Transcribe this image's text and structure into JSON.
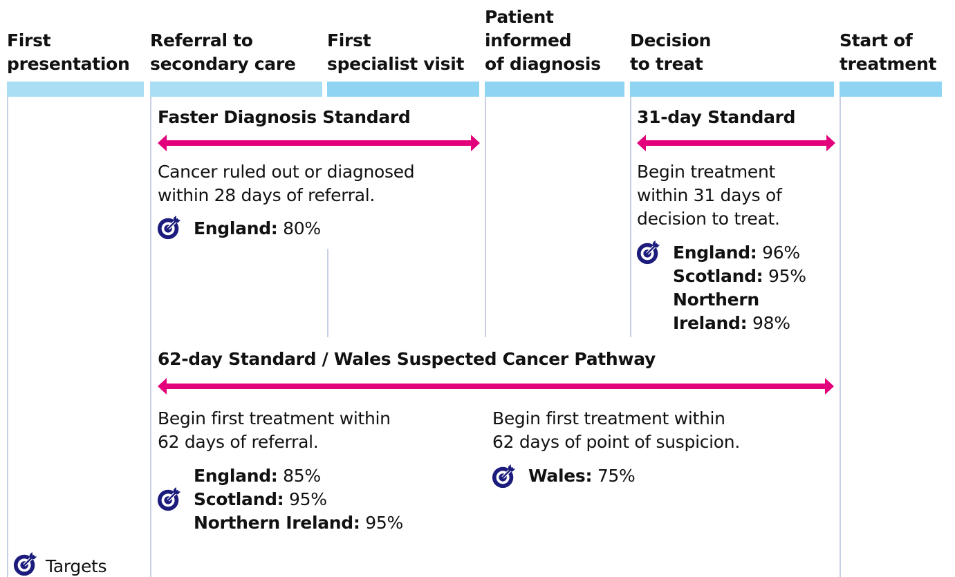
{
  "stages": [
    "First\npresentation",
    "Referral to\nsecondary care",
    "First\nspecialist visit",
    "Patient\ninformed\nof diagnosis",
    "Decision\nto treat",
    "Start of\ntreatment"
  ],
  "standards": [
    {
      "title": "Faster Diagnosis Standard",
      "notes": [
        {
          "text": "Cancer ruled out or diagnosed\nwithin 28 days of referral.",
          "targets": [
            {
              "region": "England:",
              "value": "80%"
            }
          ]
        }
      ]
    },
    {
      "title": "31-day Standard",
      "notes": [
        {
          "text": "Begin treatment\nwithin 31 days of\ndecision to treat.",
          "targets": [
            {
              "region": "England:",
              "value": "96%"
            },
            {
              "region": "Scotland:",
              "value": "95%"
            },
            {
              "region": "Northern\nIreland:",
              "value": "98%"
            }
          ]
        }
      ]
    },
    {
      "title": "62-day Standard / Wales Suspected Cancer Pathway",
      "notes": [
        {
          "text": "Begin first treatment within\n62 days of referral.",
          "targets": [
            {
              "region": "England:",
              "value": "85%"
            },
            {
              "region": "Scotland:",
              "value": "95%"
            },
            {
              "region": "Northern Ireland:",
              "value": "95%"
            }
          ]
        },
        {
          "text": "Begin first treatment within\n62 days of point of suspicion.",
          "targets": [
            {
              "region": "Wales:",
              "value": "75%"
            }
          ]
        }
      ]
    }
  ],
  "legend": {
    "label": "Targets"
  }
}
